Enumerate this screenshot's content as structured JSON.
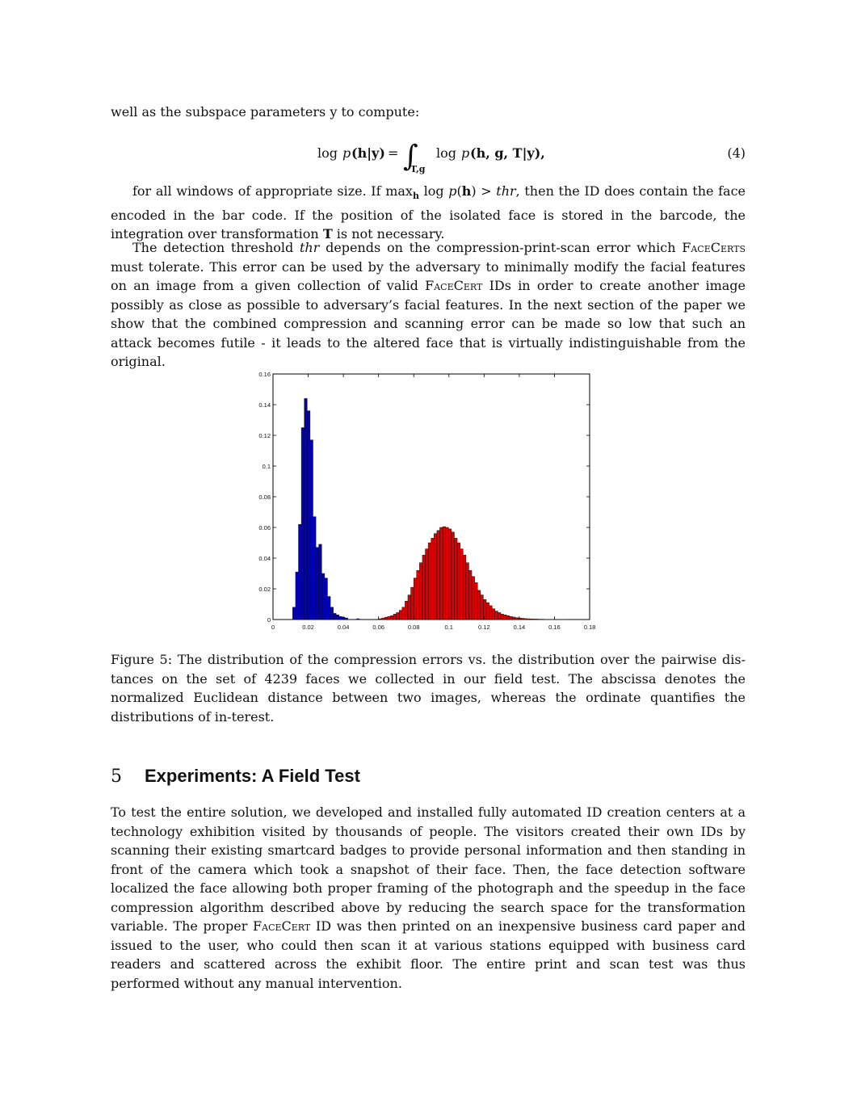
{
  "paragraph_1": "well as the subspace parameters y to compute:",
  "equation": {
    "lhs_log": "log",
    "lhs_p": "p",
    "lhs_args": "(h|y)",
    "equals": "=",
    "integral": "∫",
    "integral_subscript": "T,g",
    "rhs_log": "log",
    "rhs_p": "p",
    "rhs_args": "(h, g, T|y),",
    "number": "(4)"
  },
  "paragraph_2": {
    "part1": "for all windows of appropriate size. If max",
    "max_sub": "h",
    "part2": " log ",
    "p": "p",
    "part3": "(",
    "h": "h",
    "part4": ") > ",
    "thr": "thr",
    "part5": ", then the ID does contain the face encoded in the bar code. If the position of the isolated face is stored in the barcode, the integration over transformation ",
    "T": "T",
    "part6": " is not necessary."
  },
  "paragraph_3": {
    "part1": "The detection threshold ",
    "thr": "thr",
    "part2": " depends on the compression-print-scan error which ",
    "facecerts": "FaceCerts",
    "part3": " must tolerate. This error can be used by the adversary to minimally modify the facial features on an image from a given collection of valid ",
    "facecert": "FaceCert",
    "part4": " IDs in order to create another image possibly as close as possible to adversary’s facial features. In the next section of the paper we show that the combined compression and scanning error can be made so low that such an attack becomes futile - it leads to the altered face that is virtually indistinguishable from the original."
  },
  "chart_data": {
    "type": "bar",
    "title": "",
    "xlabel": "",
    "ylabel": "",
    "xlim": [
      0,
      0.18
    ],
    "ylim": [
      0,
      0.16
    ],
    "grid": false,
    "x_ticks": [
      "0",
      "0.02",
      "0.04",
      "0.06",
      "0.08",
      "0.1",
      "0.12",
      "0.14",
      "0.16",
      "0.18"
    ],
    "y_ticks": [
      "0",
      "0.02",
      "0.04",
      "0.06",
      "0.08",
      "0.1",
      "0.12",
      "0.14",
      "0.16"
    ],
    "bin_width": 0.00165,
    "colors": {
      "series_1": "#0000b8",
      "series_2": "#dd0000",
      "edge": "#111111"
    },
    "series": [
      {
        "x": [
          0.012,
          0.01365,
          0.0153,
          0.01695,
          0.0186,
          0.02025,
          0.0219,
          0.02355,
          0.0252,
          0.02685,
          0.0285,
          0.03015,
          0.0318,
          0.03345,
          0.0351,
          0.03675,
          0.0384,
          0.04005,
          0.0417,
          0.0483
        ],
        "values": [
          0.008,
          0.031,
          0.062,
          0.125,
          0.144,
          0.136,
          0.117,
          0.067,
          0.047,
          0.049,
          0.03,
          0.027,
          0.015,
          0.008,
          0.004,
          0.003,
          0.002,
          0.0015,
          0.001,
          0.0005
        ]
      },
      {
        "x": [
          0.061,
          0.06265,
          0.0643,
          0.06595,
          0.0676,
          0.06925,
          0.0709,
          0.07255,
          0.0742,
          0.07585,
          0.0775,
          0.07915,
          0.0808,
          0.08245,
          0.0841,
          0.08575,
          0.0874,
          0.08905,
          0.0907,
          0.09235,
          0.094,
          0.09565,
          0.0973,
          0.09895,
          0.1006,
          0.10225,
          0.1039,
          0.10555,
          0.1072,
          0.10885,
          0.1105,
          0.11215,
          0.1138,
          0.11545,
          0.1171,
          0.11875,
          0.1204,
          0.12205,
          0.1237,
          0.12535,
          0.127,
          0.12865,
          0.1303,
          0.13195,
          0.1336,
          0.13525,
          0.1369,
          0.13855,
          0.1402,
          0.14185,
          0.1435,
          0.14515,
          0.1468,
          0.14845,
          0.1501,
          0.15175,
          0.1534,
          0.15505,
          0.1567,
          0.15835,
          0.16,
          0.16165,
          0.1633,
          0.16495,
          0.1666
        ],
        "values": [
          0.0005,
          0.001,
          0.0015,
          0.002,
          0.0025,
          0.0035,
          0.0045,
          0.006,
          0.008,
          0.012,
          0.016,
          0.021,
          0.027,
          0.032,
          0.037,
          0.042,
          0.046,
          0.05,
          0.053,
          0.056,
          0.058,
          0.06,
          0.0605,
          0.06,
          0.059,
          0.057,
          0.053,
          0.05,
          0.046,
          0.042,
          0.037,
          0.032,
          0.028,
          0.024,
          0.019,
          0.016,
          0.013,
          0.011,
          0.009,
          0.007,
          0.0055,
          0.0045,
          0.0035,
          0.003,
          0.0025,
          0.002,
          0.0016,
          0.0012,
          0.001,
          0.0008,
          0.0006,
          0.0005,
          0.0004,
          0.0003,
          0.0003,
          0.0002,
          0.0002,
          0.0001,
          0.0001,
          0.0001,
          0.0001,
          5e-05,
          5e-05,
          5e-05,
          5e-05
        ]
      }
    ]
  },
  "figure_caption": "Figure 5: The distribution of the compression errors vs. the distribution over the pairwise dis-tances on the set of 4239 faces we collected in our field test. The abscissa denotes the normalized Euclidean distance between two images, whereas the ordinate quantifies the distributions of in-terest.",
  "section": {
    "number": "5",
    "title": "Experiments: A Field Test"
  },
  "paragraph_4": {
    "part1": "To test the entire solution, we developed and installed fully automated ID creation centers at a technology exhibition visited by thousands of people. The visitors created their own IDs by scanning their existing smartcard badges to provide personal information and then standing in front of the camera which took a snapshot of their face. Then, the face detection software localized the face allowing both proper framing of the photograph and the speedup in the face compression algorithm described above by reducing the search space for the transformation variable. The proper ",
    "facecert": "FaceCert",
    "part2": " ID was then printed on an inexpensive business card paper and issued to the user, who could then scan it at various stations equipped with business card readers and scattered across the exhibit floor. The entire print and scan test was thus performed without any manual intervention."
  }
}
